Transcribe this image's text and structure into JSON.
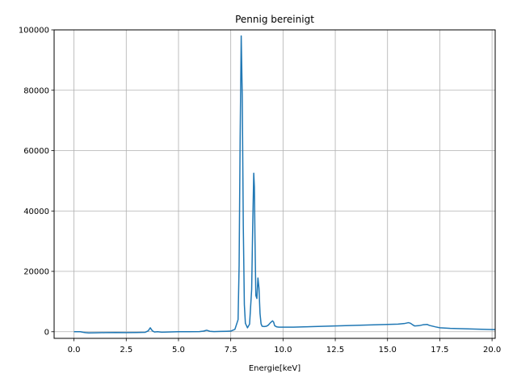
{
  "chart_data": {
    "type": "line",
    "title": "Pennig bereinigt",
    "xlabel": "Energie[keV]",
    "ylabel": "",
    "xlim": [
      -0.95,
      20.15
    ],
    "ylim": [
      -2200,
      100000
    ],
    "grid": true,
    "xticks": [
      0.0,
      2.5,
      5.0,
      7.5,
      10.0,
      12.5,
      15.0,
      17.5,
      20.0
    ],
    "xtick_labels": [
      "0.0",
      "2.5",
      "5.0",
      "7.5",
      "10.0",
      "12.5",
      "15.0",
      "17.5",
      "20.0"
    ],
    "yticks": [
      0,
      20000,
      40000,
      60000,
      80000,
      100000
    ],
    "ytick_labels": [
      "0",
      "20000",
      "40000",
      "60000",
      "80000",
      "100000"
    ],
    "color": "#1f77b4",
    "series": [
      {
        "x": [
          0.0,
          0.3,
          0.45,
          0.55,
          0.7,
          1.0,
          1.5,
          2.0,
          2.5,
          3.0,
          3.4,
          3.55,
          3.65,
          3.75,
          3.85,
          4.0,
          4.2,
          4.5,
          5.0,
          5.5,
          6.0,
          6.2,
          6.35,
          6.5,
          6.7,
          7.0,
          7.3,
          7.5,
          7.7,
          7.85,
          7.9,
          7.95,
          8.0,
          8.05,
          8.1,
          8.15,
          8.2,
          8.3,
          8.4,
          8.5,
          8.55,
          8.6,
          8.63,
          8.66,
          8.7,
          8.75,
          8.8,
          8.85,
          8.9,
          8.95,
          9.0,
          9.1,
          9.2,
          9.3,
          9.4,
          9.5,
          9.55,
          9.6,
          9.7,
          9.8,
          10.0,
          10.5,
          11.0,
          12.0,
          13.0,
          14.0,
          15.0,
          15.5,
          15.8,
          16.0,
          16.1,
          16.2,
          16.3,
          16.5,
          16.7,
          16.9,
          17.0,
          17.3,
          17.5,
          18.0,
          18.5,
          19.0,
          19.5,
          20.0,
          20.15
        ],
        "y": [
          0,
          0,
          -200,
          -300,
          -400,
          -350,
          -300,
          -250,
          -300,
          -250,
          -200,
          300,
          1300,
          300,
          -100,
          0,
          -150,
          -100,
          0,
          0,
          50,
          200,
          500,
          150,
          50,
          100,
          150,
          200,
          800,
          4000,
          22000,
          65000,
          98000,
          78000,
          35000,
          9000,
          2800,
          1300,
          2500,
          14000,
          35000,
          52500,
          48000,
          30000,
          12000,
          11000,
          17800,
          14500,
          6000,
          2600,
          1800,
          1700,
          1800,
          2200,
          3000,
          3600,
          3200,
          2000,
          1600,
          1500,
          1500,
          1500,
          1600,
          1800,
          2000,
          2200,
          2400,
          2500,
          2700,
          3000,
          2800,
          2300,
          1900,
          2000,
          2300,
          2400,
          2100,
          1600,
          1300,
          1100,
          1000,
          900,
          800,
          700,
          700
        ]
      }
    ]
  }
}
